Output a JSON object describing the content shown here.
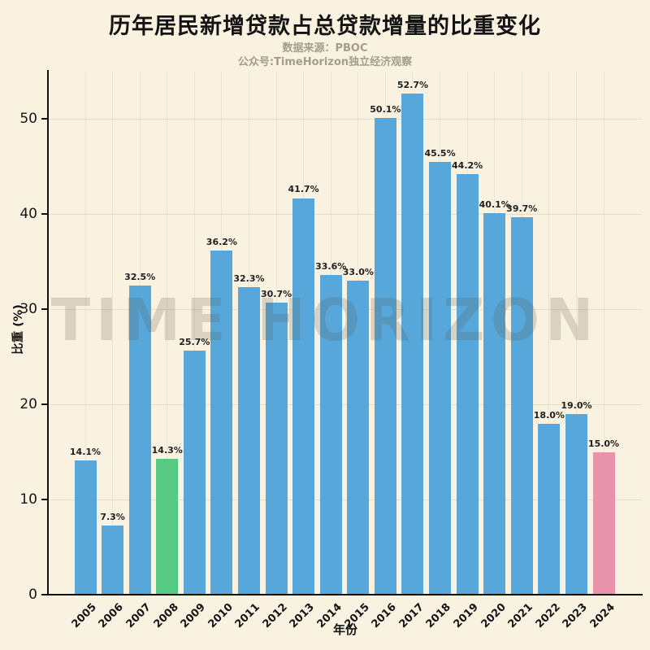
{
  "title": "历年居民新增贷款占总贷款增量的比重变化",
  "subtitle_line1": "数据来源：PBOC",
  "subtitle_line2": "公众号:TimeHorizon独立经济观察",
  "watermark": "TIME HORIZON",
  "colors": {
    "background": "#faf2e0",
    "bar_default": "#58a7db",
    "bar_highlight_green": "#56c983",
    "bar_highlight_pink": "#e794aa",
    "axis": "#111111",
    "grid": "#bab094",
    "subtitle": "#a39d8f",
    "watermark": "#555548"
  },
  "chart_data": {
    "type": "bar",
    "title": "历年居民新增贷款占总贷款增量的比重变化",
    "xlabel": "年份",
    "ylabel": "比重 (%)",
    "ylim": [
      0,
      55
    ],
    "yticks": [
      0,
      10,
      20,
      30,
      40,
      50
    ],
    "grid": true,
    "legend": "none",
    "categories": [
      "2005",
      "2006",
      "2007",
      "2008",
      "2009",
      "2010",
      "2011",
      "2012",
      "2013",
      "2014",
      "2015",
      "2016",
      "2017",
      "2018",
      "2019",
      "2020",
      "2021",
      "2022",
      "2023",
      "2024"
    ],
    "values": [
      14.1,
      7.3,
      32.5,
      14.3,
      25.7,
      36.2,
      32.3,
      30.7,
      41.7,
      33.6,
      33.0,
      50.1,
      52.7,
      45.5,
      44.2,
      40.1,
      39.7,
      18.0,
      19.0,
      15.0
    ],
    "value_label_suffix": "%",
    "bar_color_default": "#58a7db",
    "bar_color_overrides": {
      "2008": "#56c983",
      "2024": "#e794aa"
    }
  }
}
